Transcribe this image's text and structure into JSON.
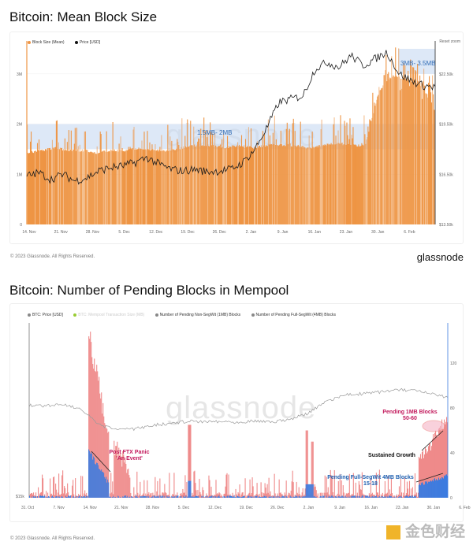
{
  "chart_data": [
    {
      "type": "bar+line",
      "title": "Bitcoin: Mean Block Size",
      "legend": [
        "Block Size (Mean)",
        "Price [USD]"
      ],
      "reset_zoom": "Reset zoom",
      "x_ticks": [
        "14. Nov",
        "21. Nov",
        "28. Nov",
        "5. Dec",
        "12. Dec",
        "19. Dec",
        "26. Dec",
        "2. Jan",
        "9. Jan",
        "16. Jan",
        "23. Jan",
        "30. Jan",
        "6. Feb"
      ],
      "y_left_ticks": [
        "0",
        "1M",
        "2M",
        "3M"
      ],
      "y_left_range": [
        0,
        3500000
      ],
      "y_right_ticks": [
        "$13.50k",
        "$16.50k",
        "$19.50k",
        "$22.50k"
      ],
      "y_right_range": [
        13500,
        24000
      ],
      "block_size_mb": [
        1.45,
        1.5,
        1.55,
        1.5,
        1.5,
        1.45,
        1.5,
        1.5,
        1.55,
        1.5,
        1.5,
        1.55,
        1.6,
        1.6,
        1.55,
        1.6,
        1.55,
        1.6,
        1.6,
        1.6,
        1.55,
        1.6,
        1.65,
        1.6,
        1.6,
        2.7,
        3.0,
        2.9,
        2.8,
        2.3
      ],
      "price_usd": [
        16400,
        16600,
        16200,
        16500,
        16100,
        16300,
        16700,
        16900,
        17000,
        17200,
        17500,
        17100,
        16800,
        16700,
        16800,
        16650,
        16700,
        16800,
        17200,
        18000,
        19300,
        20800,
        21000,
        21200,
        22800,
        23200,
        22900,
        23600,
        23000,
        23400,
        23800,
        22500,
        22100,
        21800,
        21700
      ],
      "annotations": [
        "1.5MB- 2MB",
        "3MB- 3.5MB"
      ],
      "colors": {
        "bars": "#ee9544",
        "price": "#1a1a1a",
        "band": "#c7d9f2",
        "annot": "#2f6bb5"
      }
    },
    {
      "type": "area+line",
      "title": "Bitcoin: Number of Pending Blocks in Mempool",
      "legend": [
        "BTC: Price [USD]",
        "BTC: Mempool Transaction Size (MB)",
        "Number of Pending Non-SegWit (1MB) Blocks",
        "Number of Pending Full-SegWit (4MB) Blocks"
      ],
      "x_ticks": [
        "31. Oct",
        "7. Nov",
        "14. Nov",
        "21. Nov",
        "28. Nov",
        "5. Dec",
        "12. Dec",
        "19. Dec",
        "26. Dec",
        "2. Jan",
        "9. Jan",
        "16. Jan",
        "23. Jan",
        "30. Jan",
        "6. Feb"
      ],
      "y_left_ticks": [
        "$15k"
      ],
      "y_right_ticks": [
        "0",
        "40",
        "80",
        "120"
      ],
      "y_right_range": [
        0,
        150
      ],
      "annotations": {
        "ftx_1": "Post FTX Panic",
        "ftx_2": "'An Event'",
        "growth": "Sustained Growth",
        "segwit_1": "Pending Full-SegWit 4MB Blocks",
        "segwit_2": "15-18",
        "onemb_1": "Pending 1MB Blocks",
        "onemb_2": "50-60"
      },
      "colors": {
        "nonsegwit": "#ef8a8a",
        "segwit": "#3b7be0",
        "price": "#9a9a9a",
        "annot_red": "#c2185b",
        "annot_blue": "#1f5fb0"
      }
    }
  ],
  "footer": {
    "copyright": "© 2023 Glassnode. All Rights Reserved.",
    "logo": "glassnode"
  },
  "watermark": "glassnode",
  "corner_logo": "金色财经"
}
